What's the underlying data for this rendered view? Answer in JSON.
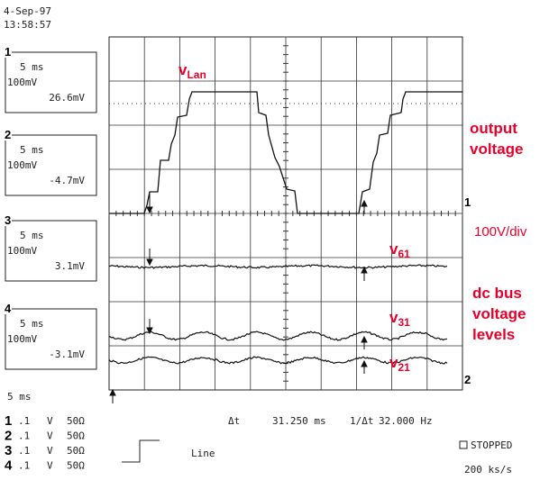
{
  "header": {
    "date": "4-Sep-97",
    "time": "13:58:57"
  },
  "channels": [
    {
      "number": "1",
      "timebase": "5 ms",
      "scale": "100mV",
      "reading": "26.6mV"
    },
    {
      "number": "2",
      "timebase": "5 ms",
      "scale": "100mV",
      "reading": "-4.7mV"
    },
    {
      "number": "3",
      "timebase": "5 ms",
      "scale": "100mV",
      "reading": "3.1mV"
    },
    {
      "number": "4",
      "timebase": "5 ms",
      "scale": "100mV",
      "reading": "-3.1mV"
    }
  ],
  "timebase": "5 ms",
  "readout": {
    "delta_t_label": "Δt",
    "delta_t": "31.250 ms",
    "inverse_label": "1/Δt",
    "frequency": "32.000 Hz"
  },
  "channel_settings": [
    {
      "number": "1",
      "sensitivity": ".1",
      "unit": "V",
      "impedance": "50Ω"
    },
    {
      "number": "2",
      "sensitivity": ".1",
      "unit": "V",
      "impedance": "50Ω"
    },
    {
      "number": "3",
      "sensitivity": ".1",
      "unit": "V",
      "impedance": "50Ω"
    },
    {
      "number": "4",
      "sensitivity": ".1",
      "unit": "V",
      "impedance": "50Ω"
    }
  ],
  "trigger": {
    "source": "Line"
  },
  "status": {
    "state": "STOPPED",
    "rate": "200 ks/s"
  },
  "screen_markers": {
    "trace_1": "1",
    "trace_bottom": "2"
  },
  "annotations": {
    "v_lan": {
      "symbol": "v",
      "subscript": "Lan"
    },
    "v_61": {
      "symbol": "v",
      "subscript": "61"
    },
    "v_31": {
      "symbol": "v",
      "subscript": "31"
    },
    "v_21": {
      "symbol": "v",
      "subscript": "21"
    },
    "output_voltage": [
      "output",
      "voltage"
    ],
    "scale": "100V/div",
    "dc_bus": [
      "dc bus",
      "voltage",
      "levels"
    ]
  }
}
